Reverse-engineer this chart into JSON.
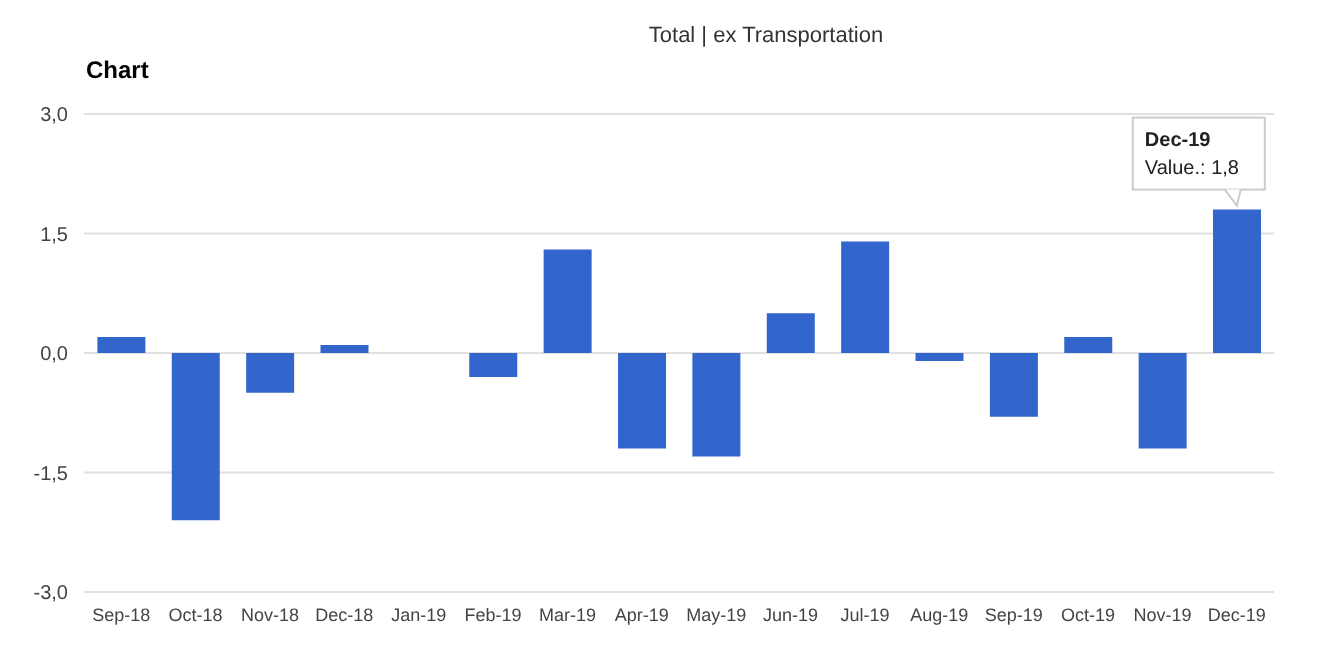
{
  "chart_data": {
    "type": "bar",
    "title": "Chart",
    "categories": [
      "Sep-18",
      "Oct-18",
      "Nov-18",
      "Dec-18",
      "Jan-19",
      "Feb-19",
      "Mar-19",
      "Apr-19",
      "May-19",
      "Jun-19",
      "Jul-19",
      "Aug-19",
      "Sep-19",
      "Oct-19",
      "Nov-19",
      "Dec-19"
    ],
    "values": [
      0.2,
      -2.1,
      -0.5,
      0.1,
      0,
      -0.3,
      1.3,
      -1.2,
      -1.3,
      0.5,
      1.4,
      -0.1,
      -0.8,
      0.2,
      -1.2,
      1.8
    ],
    "color": "#3366cc",
    "ylim": [
      -3,
      3
    ],
    "yticks": [
      {
        "value": -3,
        "label": "-3,0"
      },
      {
        "value": -1.5,
        "label": "-1,5"
      },
      {
        "value": 0,
        "label": "0,0"
      },
      {
        "value": 1.5,
        "label": "1,5"
      },
      {
        "value": 3,
        "label": "3,0"
      }
    ],
    "grid": "y",
    "legend": false,
    "annotations": [
      "Total | ex Transportation",
      {
        "text": "Dec-19\nValue.: 1,8",
        "x": "Dec-19",
        "y": 1.8
      }
    ]
  }
}
